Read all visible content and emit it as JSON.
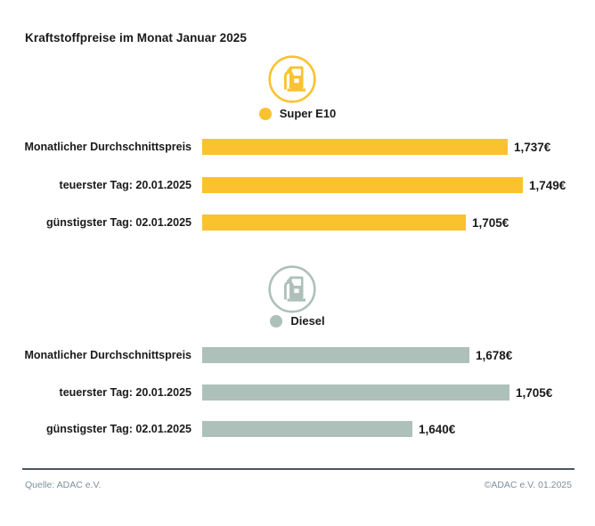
{
  "title": "Kraftstoffpreise im Monat Januar 2025",
  "colors": {
    "super_e10": "#FAC22E",
    "diesel": "#AEC0BA",
    "text": "#1a1a1a",
    "footer_text": "#7e909b",
    "divider": "#4a565e"
  },
  "icons": {
    "super_pump": "fuel-pump-icon",
    "diesel_pump": "fuel-pump-icon"
  },
  "chart_data": [
    {
      "type": "bar",
      "orientation": "horizontal",
      "group": "Super E10",
      "unit": "EUR/Liter",
      "categories": [
        "Monatlicher Durchschnittspreis",
        "teuerster Tag: 20.01.2025",
        "günstigster Tag: 02.01.2025"
      ],
      "values": [
        1.737,
        1.749,
        1.705
      ],
      "value_labels": [
        "1,737€",
        "1,749€",
        "1,705€"
      ],
      "color": "#FAC22E",
      "xlim": [
        1.5,
        1.76
      ],
      "grid": false,
      "legend_position": "top-center"
    },
    {
      "type": "bar",
      "orientation": "horizontal",
      "group": "Diesel",
      "unit": "EUR/Liter",
      "categories": [
        "Monatlicher Durchschnittspreis",
        "teuerster Tag: 20.01.2025",
        "günstigster Tag: 02.01.2025"
      ],
      "values": [
        1.678,
        1.705,
        1.64
      ],
      "value_labels": [
        "1,678€",
        "1,705€",
        "1,640€"
      ],
      "color": "#AEC0BA",
      "xlim": [
        1.5,
        1.71
      ],
      "grid": false,
      "legend_position": "top-center"
    }
  ],
  "footer": {
    "source": "Quelle: ADAC e.V.",
    "copyright": "©ADAC e.V. 01.2025"
  }
}
